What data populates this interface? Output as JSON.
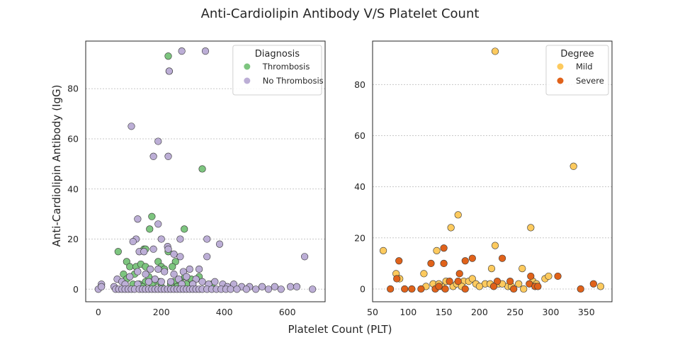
{
  "figure": {
    "title": "Anti-Cardiolipin Antibody V/S Platelet Count",
    "xlabel": "Platelet Count (PLT)",
    "ylabel": "Anti-Cardiolipin Antibody (IgG)"
  },
  "chart_data": [
    {
      "type": "scatter",
      "xlim": [
        -40,
        720
      ],
      "ylim": [
        -5,
        99
      ],
      "xticks": [
        0,
        200,
        400,
        600
      ],
      "yticks": [
        0,
        20,
        40,
        60,
        80
      ],
      "grid": "y",
      "legend": {
        "title": "Diagnosis",
        "placement": "top-right",
        "entries": [
          "Thrombosis",
          "No Thrombosis"
        ]
      },
      "series": [
        {
          "name": "Thrombosis",
          "color": "#7dc57f",
          "points": [
            [
              222,
              93
            ],
            [
              225,
              87
            ],
            [
              330,
              48
            ],
            [
              273,
              24
            ],
            [
              170,
              29
            ],
            [
              163,
              24
            ],
            [
              145,
              16
            ],
            [
              150,
              16
            ],
            [
              63,
              15
            ],
            [
              222,
              15
            ],
            [
              90,
              11
            ],
            [
              190,
              11
            ],
            [
              245,
              11
            ],
            [
              100,
              9
            ],
            [
              120,
              9
            ],
            [
              135,
              10
            ],
            [
              150,
              9
            ],
            [
              200,
              9
            ],
            [
              210,
              8
            ],
            [
              235,
              9
            ],
            [
              80,
              6
            ],
            [
              115,
              6
            ],
            [
              275,
              5
            ],
            [
              295,
              4
            ],
            [
              320,
              5
            ],
            [
              80,
              3
            ],
            [
              90,
              4
            ],
            [
              150,
              3
            ],
            [
              180,
              3
            ],
            [
              195,
              3
            ],
            [
              240,
              3
            ],
            [
              260,
              3
            ],
            [
              160,
              5
            ],
            [
              110,
              2
            ],
            [
              130,
              2
            ],
            [
              170,
              2
            ],
            [
              230,
              2
            ],
            [
              280,
              2
            ],
            [
              300,
              2
            ],
            [
              360,
              2
            ],
            [
              140,
              1
            ],
            [
              200,
              1
            ],
            [
              250,
              1
            ]
          ]
        },
        {
          "name": "No Thrombosis",
          "color": "#bcaed6",
          "points": [
            [
              265,
              95
            ],
            [
              340,
              95
            ],
            [
              225,
              87
            ],
            [
              105,
              65
            ],
            [
              190,
              59
            ],
            [
              175,
              53
            ],
            [
              222,
              53
            ],
            [
              125,
              28
            ],
            [
              190,
              26
            ],
            [
              345,
              20
            ],
            [
              385,
              18
            ],
            [
              120,
              20
            ],
            [
              200,
              20
            ],
            [
              260,
              20
            ],
            [
              110,
              19
            ],
            [
              220,
              17
            ],
            [
              175,
              16
            ],
            [
              222,
              16
            ],
            [
              240,
              14
            ],
            [
              260,
              13
            ],
            [
              345,
              13
            ],
            [
              655,
              13
            ],
            [
              130,
              15
            ],
            [
              145,
              15
            ],
            [
              290,
              8
            ],
            [
              320,
              8
            ],
            [
              165,
              8
            ],
            [
              190,
              8
            ],
            [
              270,
              7
            ],
            [
              125,
              7
            ],
            [
              240,
              6
            ],
            [
              210,
              7
            ],
            [
              150,
              6
            ],
            [
              100,
              5
            ],
            [
              280,
              5
            ],
            [
              60,
              4
            ],
            [
              180,
              4
            ],
            [
              255,
              4
            ],
            [
              310,
              4
            ],
            [
              75,
              3
            ],
            [
              160,
              3
            ],
            [
              200,
              3
            ],
            [
              230,
              3
            ],
            [
              330,
              3
            ],
            [
              370,
              3
            ],
            [
              395,
              2
            ],
            [
              430,
              2
            ],
            [
              10,
              2
            ],
            [
              50,
              1
            ],
            [
              85,
              2
            ],
            [
              125,
              2
            ],
            [
              265,
              2
            ],
            [
              300,
              2
            ],
            [
              350,
              2
            ],
            [
              410,
              1
            ],
            [
              455,
              1
            ],
            [
              480,
              1
            ],
            [
              520,
              1
            ],
            [
              560,
              1
            ],
            [
              610,
              1
            ],
            [
              630,
              1
            ],
            [
              0,
              0
            ],
            [
              10,
              1
            ],
            [
              55,
              0
            ],
            [
              65,
              0
            ],
            [
              75,
              0
            ],
            [
              85,
              0
            ],
            [
              95,
              0
            ],
            [
              105,
              0
            ],
            [
              115,
              0
            ],
            [
              130,
              0
            ],
            [
              140,
              0
            ],
            [
              150,
              0
            ],
            [
              160,
              0
            ],
            [
              170,
              0
            ],
            [
              180,
              0
            ],
            [
              190,
              0
            ],
            [
              200,
              0
            ],
            [
              210,
              0
            ],
            [
              220,
              0
            ],
            [
              230,
              0
            ],
            [
              240,
              0
            ],
            [
              250,
              0
            ],
            [
              260,
              0
            ],
            [
              270,
              0
            ],
            [
              280,
              0
            ],
            [
              290,
              0
            ],
            [
              300,
              0
            ],
            [
              310,
              0
            ],
            [
              320,
              0
            ],
            [
              330,
              0
            ],
            [
              345,
              0
            ],
            [
              360,
              0
            ],
            [
              375,
              0
            ],
            [
              390,
              0
            ],
            [
              405,
              0
            ],
            [
              420,
              0
            ],
            [
              440,
              0
            ],
            [
              470,
              0
            ],
            [
              500,
              0
            ],
            [
              540,
              0
            ],
            [
              580,
              0
            ],
            [
              680,
              0
            ]
          ]
        }
      ]
    },
    {
      "type": "scatter",
      "xlim": [
        50,
        386
      ],
      "ylim": [
        -5,
        97
      ],
      "xticks": [
        50,
        100,
        150,
        200,
        250,
        300,
        350
      ],
      "yticks": [
        0,
        20,
        40,
        60,
        80
      ],
      "grid": "y",
      "legend": {
        "title": "Degree",
        "placement": "top-right",
        "entries": [
          "Mild",
          "Severe"
        ]
      },
      "series": [
        {
          "name": "Mild",
          "color": "#fdca5e",
          "points": [
            [
              222,
              93
            ],
            [
              332,
              48
            ],
            [
              170,
              29
            ],
            [
              160,
              24
            ],
            [
              272,
              24
            ],
            [
              222,
              17
            ],
            [
              65,
              15
            ],
            [
              140,
              15
            ],
            [
              217,
              8
            ],
            [
              260,
              8
            ],
            [
              122,
              6
            ],
            [
              83,
              6
            ],
            [
              88,
              4
            ],
            [
              178,
              3
            ],
            [
              185,
              3
            ],
            [
              190,
              4
            ],
            [
              195,
              2
            ],
            [
              208,
              2
            ],
            [
              215,
              2
            ],
            [
              227,
              2
            ],
            [
              240,
              1
            ],
            [
              245,
              1
            ],
            [
              255,
              2
            ],
            [
              275,
              3
            ],
            [
              292,
              4
            ],
            [
              297,
              5
            ],
            [
              370,
              1
            ],
            [
              125,
              1
            ],
            [
              135,
              2
            ],
            [
              147,
              1
            ],
            [
              163,
              1
            ],
            [
              168,
              2
            ],
            [
              175,
              1
            ],
            [
              200,
              1
            ],
            [
              232,
              2
            ],
            [
              262,
              0
            ],
            [
              280,
              2
            ],
            [
              143,
              2
            ],
            [
              153,
              3
            ]
          ]
        },
        {
          "name": "Severe",
          "color": "#e0621a",
          "points": [
            [
              150,
              16
            ],
            [
              87,
              11
            ],
            [
              132,
              10
            ],
            [
              150,
              10
            ],
            [
              180,
              11
            ],
            [
              190,
              12
            ],
            [
              232,
              12
            ],
            [
              172,
              6
            ],
            [
              272,
              5
            ],
            [
              310,
              5
            ],
            [
              84,
              4
            ],
            [
              158,
              3
            ],
            [
              170,
              3
            ],
            [
              225,
              3
            ],
            [
              243,
              3
            ],
            [
              270,
              2
            ],
            [
              278,
              1
            ],
            [
              282,
              1
            ],
            [
              360,
              2
            ],
            [
              75,
              0
            ],
            [
              95,
              0
            ],
            [
              105,
              0
            ],
            [
              118,
              0
            ],
            [
              138,
              0
            ],
            [
              143,
              1
            ],
            [
              152,
              0
            ],
            [
              180,
              0
            ],
            [
              220,
              1
            ],
            [
              248,
              0
            ],
            [
              342,
              0
            ]
          ]
        }
      ]
    }
  ]
}
